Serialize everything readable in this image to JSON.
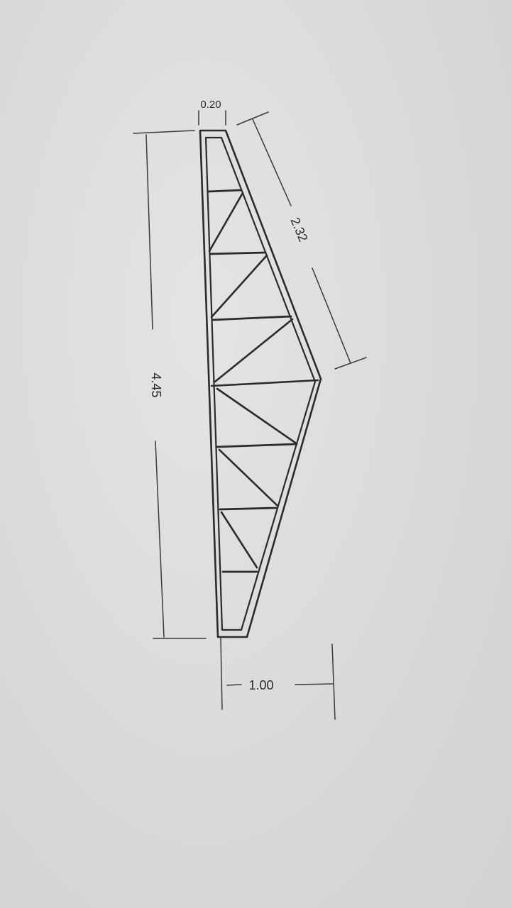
{
  "drawing": {
    "type": "truss-elevation",
    "dimensions": {
      "top_width": "0.20",
      "total_height": "4.45",
      "upper_inclined_length": "2.32",
      "base_width": "1.00"
    },
    "panels": {
      "upper_section_verticals": 4,
      "lower_section_verticals": 4
    },
    "colors": {
      "paper": "#dcdcda",
      "ink": "#2a2a2a"
    }
  }
}
